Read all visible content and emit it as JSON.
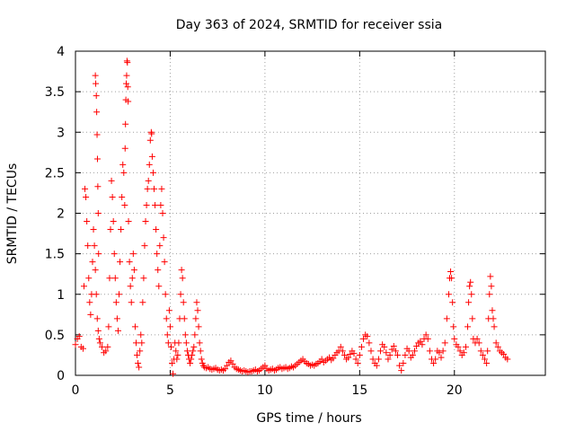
{
  "chart_data": {
    "type": "scatter",
    "title": "Day 363 of 2024, SRMTID for receiver ssia",
    "xlabel": "GPS time / hours",
    "ylabel": "SRMTID / TECUs",
    "xlim": [
      0,
      24.8
    ],
    "ylim": [
      0,
      4
    ],
    "xticks": [
      "0",
      "5",
      "10",
      "15",
      "20"
    ],
    "yticks": [
      "0",
      "0.5",
      "1",
      "1.5",
      "2",
      "2.5",
      "3",
      "3.5",
      "4"
    ],
    "grid": true,
    "marker": "+",
    "color": "#ff0000",
    "series": [
      {
        "name": "SRMTID",
        "points": [
          [
            0.0,
            0.38
          ],
          [
            0.1,
            0.45
          ],
          [
            0.2,
            0.48
          ],
          [
            0.3,
            0.35
          ],
          [
            0.4,
            0.33
          ],
          [
            0.45,
            1.1
          ],
          [
            0.5,
            2.3
          ],
          [
            0.55,
            2.2
          ],
          [
            0.6,
            1.9
          ],
          [
            0.65,
            1.6
          ],
          [
            0.7,
            1.2
          ],
          [
            0.75,
            0.9
          ],
          [
            0.8,
            0.75
          ],
          [
            0.85,
            1.0
          ],
          [
            0.9,
            1.4
          ],
          [
            0.95,
            1.8
          ],
          [
            1.0,
            1.6
          ],
          [
            1.05,
            1.3
          ],
          [
            1.1,
            1.0
          ],
          [
            1.15,
            0.7
          ],
          [
            1.2,
            0.55
          ],
          [
            1.25,
            0.45
          ],
          [
            1.3,
            0.4
          ],
          [
            1.05,
            3.7
          ],
          [
            1.07,
            3.6
          ],
          [
            1.1,
            3.45
          ],
          [
            1.12,
            3.25
          ],
          [
            1.14,
            2.97
          ],
          [
            1.16,
            2.67
          ],
          [
            1.18,
            2.33
          ],
          [
            1.2,
            2.0
          ],
          [
            1.22,
            1.5
          ],
          [
            1.4,
            0.35
          ],
          [
            1.5,
            0.28
          ],
          [
            1.6,
            0.3
          ],
          [
            1.7,
            0.35
          ],
          [
            1.75,
            0.6
          ],
          [
            1.8,
            1.2
          ],
          [
            1.85,
            1.8
          ],
          [
            1.9,
            2.4
          ],
          [
            1.95,
            2.2
          ],
          [
            2.0,
            1.9
          ],
          [
            2.05,
            1.5
          ],
          [
            2.1,
            1.2
          ],
          [
            2.15,
            0.9
          ],
          [
            2.2,
            0.7
          ],
          [
            2.25,
            0.55
          ],
          [
            2.3,
            1.0
          ],
          [
            2.35,
            1.4
          ],
          [
            2.4,
            1.8
          ],
          [
            2.45,
            2.2
          ],
          [
            2.5,
            2.6
          ],
          [
            2.55,
            2.5
          ],
          [
            2.6,
            2.1
          ],
          [
            2.62,
            2.8
          ],
          [
            2.64,
            3.1
          ],
          [
            2.66,
            3.4
          ],
          [
            2.68,
            3.6
          ],
          [
            2.7,
            3.7
          ],
          [
            2.72,
            3.88
          ],
          [
            2.74,
            3.86
          ],
          [
            2.76,
            3.56
          ],
          [
            2.78,
            3.38
          ],
          [
            2.8,
            1.9
          ],
          [
            2.85,
            1.4
          ],
          [
            2.9,
            1.1
          ],
          [
            2.95,
            0.9
          ],
          [
            3.0,
            1.2
          ],
          [
            3.05,
            1.5
          ],
          [
            3.1,
            1.3
          ],
          [
            3.15,
            0.6
          ],
          [
            3.2,
            0.4
          ],
          [
            3.25,
            0.25
          ],
          [
            3.3,
            0.15
          ],
          [
            3.35,
            0.1
          ],
          [
            3.4,
            0.3
          ],
          [
            3.45,
            0.5
          ],
          [
            3.5,
            0.4
          ],
          [
            3.55,
            0.9
          ],
          [
            3.6,
            1.2
          ],
          [
            3.65,
            1.6
          ],
          [
            3.7,
            1.9
          ],
          [
            3.75,
            2.1
          ],
          [
            3.8,
            2.3
          ],
          [
            3.85,
            2.4
          ],
          [
            3.9,
            2.6
          ],
          [
            3.95,
            2.9
          ],
          [
            4.0,
            3.0
          ],
          [
            4.02,
            2.98
          ],
          [
            4.05,
            2.7
          ],
          [
            4.1,
            2.5
          ],
          [
            4.15,
            2.3
          ],
          [
            4.2,
            2.1
          ],
          [
            4.25,
            1.8
          ],
          [
            4.3,
            1.5
          ],
          [
            4.35,
            1.3
          ],
          [
            4.4,
            1.1
          ],
          [
            4.45,
            1.6
          ],
          [
            4.5,
            2.1
          ],
          [
            4.55,
            2.3
          ],
          [
            4.6,
            2.0
          ],
          [
            4.65,
            1.7
          ],
          [
            4.7,
            1.4
          ],
          [
            4.75,
            1.0
          ],
          [
            4.8,
            0.7
          ],
          [
            4.85,
            0.5
          ],
          [
            4.9,
            0.4
          ],
          [
            4.95,
            0.8
          ],
          [
            5.0,
            0.6
          ],
          [
            5.05,
            0.35
          ],
          [
            5.1,
            0.15
          ],
          [
            5.15,
            0.02
          ],
          [
            5.2,
            0.2
          ],
          [
            5.25,
            0.4
          ],
          [
            5.3,
            0.3
          ],
          [
            5.35,
            0.2
          ],
          [
            5.4,
            0.25
          ],
          [
            5.45,
            0.4
          ],
          [
            5.5,
            0.7
          ],
          [
            5.55,
            1.0
          ],
          [
            5.6,
            1.3
          ],
          [
            5.65,
            1.2
          ],
          [
            5.7,
            0.9
          ],
          [
            5.75,
            0.7
          ],
          [
            5.8,
            0.5
          ],
          [
            5.85,
            0.4
          ],
          [
            5.9,
            0.3
          ],
          [
            5.95,
            0.25
          ],
          [
            6.0,
            0.2
          ],
          [
            6.05,
            0.15
          ],
          [
            6.1,
            0.2
          ],
          [
            6.15,
            0.25
          ],
          [
            6.2,
            0.3
          ],
          [
            6.25,
            0.35
          ],
          [
            6.3,
            0.5
          ],
          [
            6.35,
            0.7
          ],
          [
            6.4,
            0.9
          ],
          [
            6.45,
            0.8
          ],
          [
            6.5,
            0.6
          ],
          [
            6.55,
            0.4
          ],
          [
            6.6,
            0.3
          ],
          [
            6.65,
            0.2
          ],
          [
            6.7,
            0.15
          ],
          [
            6.75,
            0.12
          ],
          [
            6.8,
            0.1
          ],
          [
            6.9,
            0.09
          ],
          [
            7.0,
            0.1
          ],
          [
            7.1,
            0.08
          ],
          [
            7.2,
            0.07
          ],
          [
            7.3,
            0.08
          ],
          [
            7.4,
            0.09
          ],
          [
            7.5,
            0.07
          ],
          [
            7.6,
            0.06
          ],
          [
            7.7,
            0.07
          ],
          [
            7.8,
            0.06
          ],
          [
            7.9,
            0.08
          ],
          [
            8.0,
            0.12
          ],
          [
            8.1,
            0.16
          ],
          [
            8.2,
            0.18
          ],
          [
            8.3,
            0.14
          ],
          [
            8.4,
            0.1
          ],
          [
            8.5,
            0.08
          ],
          [
            8.6,
            0.07
          ],
          [
            8.7,
            0.06
          ],
          [
            8.8,
            0.05
          ],
          [
            8.9,
            0.06
          ],
          [
            9.0,
            0.05
          ],
          [
            9.1,
            0.04
          ],
          [
            9.2,
            0.05
          ],
          [
            9.3,
            0.05
          ],
          [
            9.4,
            0.06
          ],
          [
            9.5,
            0.07
          ],
          [
            9.6,
            0.05
          ],
          [
            9.7,
            0.06
          ],
          [
            9.8,
            0.08
          ],
          [
            9.9,
            0.1
          ],
          [
            10.0,
            0.12
          ],
          [
            10.1,
            0.08
          ],
          [
            10.2,
            0.06
          ],
          [
            10.3,
            0.07
          ],
          [
            10.4,
            0.08
          ],
          [
            10.5,
            0.06
          ],
          [
            10.6,
            0.07
          ],
          [
            10.7,
            0.09
          ],
          [
            10.8,
            0.1
          ],
          [
            10.9,
            0.08
          ],
          [
            11.0,
            0.09
          ],
          [
            11.1,
            0.1
          ],
          [
            11.2,
            0.08
          ],
          [
            11.3,
            0.09
          ],
          [
            11.4,
            0.11
          ],
          [
            11.5,
            0.1
          ],
          [
            11.6,
            0.12
          ],
          [
            11.7,
            0.14
          ],
          [
            11.8,
            0.16
          ],
          [
            11.9,
            0.18
          ],
          [
            12.0,
            0.2
          ],
          [
            12.1,
            0.17
          ],
          [
            12.2,
            0.15
          ],
          [
            12.3,
            0.14
          ],
          [
            12.4,
            0.12
          ],
          [
            12.5,
            0.13
          ],
          [
            12.6,
            0.12
          ],
          [
            12.7,
            0.14
          ],
          [
            12.8,
            0.15
          ],
          [
            12.9,
            0.17
          ],
          [
            13.0,
            0.2
          ],
          [
            13.1,
            0.16
          ],
          [
            13.2,
            0.18
          ],
          [
            13.3,
            0.2
          ],
          [
            13.4,
            0.22
          ],
          [
            13.5,
            0.19
          ],
          [
            13.6,
            0.21
          ],
          [
            13.7,
            0.25
          ],
          [
            13.8,
            0.28
          ],
          [
            13.9,
            0.3
          ],
          [
            14.0,
            0.35
          ],
          [
            14.1,
            0.3
          ],
          [
            14.2,
            0.25
          ],
          [
            14.3,
            0.2
          ],
          [
            14.4,
            0.22
          ],
          [
            14.5,
            0.26
          ],
          [
            14.6,
            0.3
          ],
          [
            14.7,
            0.27
          ],
          [
            14.8,
            0.2
          ],
          [
            14.9,
            0.15
          ],
          [
            15.0,
            0.25
          ],
          [
            15.1,
            0.35
          ],
          [
            15.2,
            0.45
          ],
          [
            15.3,
            0.5
          ],
          [
            15.4,
            0.48
          ],
          [
            15.5,
            0.4
          ],
          [
            15.6,
            0.3
          ],
          [
            15.7,
            0.2
          ],
          [
            15.8,
            0.15
          ],
          [
            15.9,
            0.12
          ],
          [
            16.0,
            0.2
          ],
          [
            16.1,
            0.3
          ],
          [
            16.2,
            0.38
          ],
          [
            16.3,
            0.35
          ],
          [
            16.4,
            0.28
          ],
          [
            16.5,
            0.2
          ],
          [
            16.6,
            0.25
          ],
          [
            16.7,
            0.32
          ],
          [
            16.8,
            0.36
          ],
          [
            16.9,
            0.3
          ],
          [
            17.0,
            0.25
          ],
          [
            17.1,
            0.12
          ],
          [
            17.2,
            0.06
          ],
          [
            17.3,
            0.15
          ],
          [
            17.4,
            0.25
          ],
          [
            17.5,
            0.33
          ],
          [
            17.6,
            0.3
          ],
          [
            17.7,
            0.22
          ],
          [
            17.8,
            0.25
          ],
          [
            17.9,
            0.3
          ],
          [
            18.0,
            0.36
          ],
          [
            18.1,
            0.4
          ],
          [
            18.2,
            0.42
          ],
          [
            18.3,
            0.38
          ],
          [
            18.4,
            0.45
          ],
          [
            18.5,
            0.5
          ],
          [
            18.6,
            0.45
          ],
          [
            18.7,
            0.3
          ],
          [
            18.8,
            0.2
          ],
          [
            18.9,
            0.15
          ],
          [
            19.0,
            0.2
          ],
          [
            19.1,
            0.3
          ],
          [
            19.2,
            0.28
          ],
          [
            19.3,
            0.22
          ],
          [
            19.4,
            0.3
          ],
          [
            19.5,
            0.4
          ],
          [
            19.6,
            0.7
          ],
          [
            19.7,
            1.0
          ],
          [
            19.75,
            1.2
          ],
          [
            19.8,
            1.28
          ],
          [
            19.85,
            1.2
          ],
          [
            19.9,
            0.9
          ],
          [
            19.95,
            0.6
          ],
          [
            20.0,
            0.45
          ],
          [
            20.1,
            0.38
          ],
          [
            20.2,
            0.35
          ],
          [
            20.3,
            0.3
          ],
          [
            20.4,
            0.25
          ],
          [
            20.5,
            0.28
          ],
          [
            20.6,
            0.35
          ],
          [
            20.7,
            0.6
          ],
          [
            20.75,
            0.9
          ],
          [
            20.8,
            1.1
          ],
          [
            20.85,
            1.15
          ],
          [
            20.9,
            1.0
          ],
          [
            20.95,
            0.7
          ],
          [
            21.0,
            0.45
          ],
          [
            21.1,
            0.4
          ],
          [
            21.2,
            0.45
          ],
          [
            21.3,
            0.4
          ],
          [
            21.4,
            0.3
          ],
          [
            21.5,
            0.25
          ],
          [
            21.6,
            0.2
          ],
          [
            21.7,
            0.15
          ],
          [
            21.75,
            0.3
          ],
          [
            21.8,
            0.7
          ],
          [
            21.85,
            1.0
          ],
          [
            21.9,
            1.22
          ],
          [
            21.95,
            1.1
          ],
          [
            22.0,
            0.8
          ],
          [
            22.05,
            0.7
          ],
          [
            22.1,
            0.6
          ],
          [
            22.2,
            0.4
          ],
          [
            22.3,
            0.35
          ],
          [
            22.4,
            0.3
          ],
          [
            22.5,
            0.28
          ],
          [
            22.6,
            0.26
          ],
          [
            22.7,
            0.22
          ],
          [
            22.8,
            0.2
          ]
        ]
      }
    ]
  }
}
